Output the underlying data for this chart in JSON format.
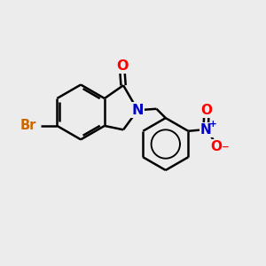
{
  "bg_color": "#ececec",
  "bond_color": "#000000",
  "bond_width": 1.8,
  "atom_colors": {
    "O": "#ff0000",
    "N": "#0000cd",
    "Br": "#cc6600",
    "C": "#000000"
  },
  "font_size_atom": 10.5,
  "circle_r": 0.55,
  "benz_r": 1.05,
  "ph2_r": 1.0
}
